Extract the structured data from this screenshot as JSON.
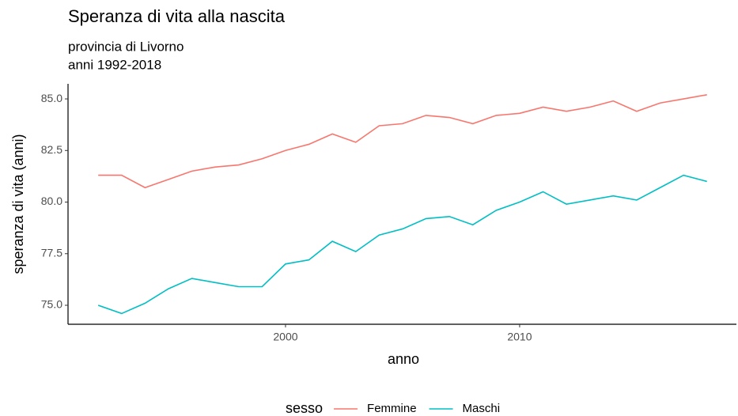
{
  "chart_data": {
    "type": "line",
    "title": "Speranza di vita alla nascita",
    "subtitle": [
      "provincia di Livorno",
      "anni 1992-2018"
    ],
    "x_label": "anno",
    "y_label": "speranza di vita (anni)",
    "legend_title": "sesso",
    "legend_position": "bottom",
    "x": [
      1992,
      1993,
      1994,
      1995,
      1996,
      1997,
      1998,
      1999,
      2000,
      2001,
      2002,
      2003,
      2004,
      2005,
      2006,
      2007,
      2008,
      2009,
      2010,
      2011,
      2012,
      2013,
      2014,
      2015,
      2016,
      2017,
      2018
    ],
    "series": [
      {
        "name": "Femmine",
        "color": "#F8766D",
        "values": [
          81.3,
          81.3,
          80.7,
          81.1,
          81.5,
          81.7,
          81.8,
          82.1,
          82.5,
          82.8,
          83.3,
          82.9,
          83.7,
          83.8,
          84.2,
          84.1,
          83.8,
          84.2,
          84.3,
          84.6,
          84.4,
          84.6,
          84.9,
          84.4,
          84.8,
          85.0,
          85.2
        ]
      },
      {
        "name": "Maschi",
        "color": "#00BFC4",
        "values": [
          75.0,
          74.6,
          75.1,
          75.8,
          76.3,
          76.1,
          75.9,
          75.9,
          77.0,
          77.2,
          78.1,
          77.6,
          78.4,
          78.7,
          79.2,
          79.3,
          78.9,
          79.6,
          80.0,
          80.5,
          79.9,
          80.1,
          80.3,
          80.1,
          80.7,
          81.3,
          81.0
        ]
      }
    ],
    "xlim": [
      1990.71,
      2019.26
    ],
    "xticks": [
      2000,
      2010
    ],
    "ylim": [
      74.08,
      85.73
    ],
    "yticks": [
      {
        "value": 75,
        "label": "75.0"
      },
      {
        "value": 77.5,
        "label": "77.5"
      },
      {
        "value": 80,
        "label": "80.0"
      },
      {
        "value": 82.5,
        "label": "82.5"
      },
      {
        "value": 85,
        "label": "85.0"
      }
    ],
    "grid": false
  }
}
